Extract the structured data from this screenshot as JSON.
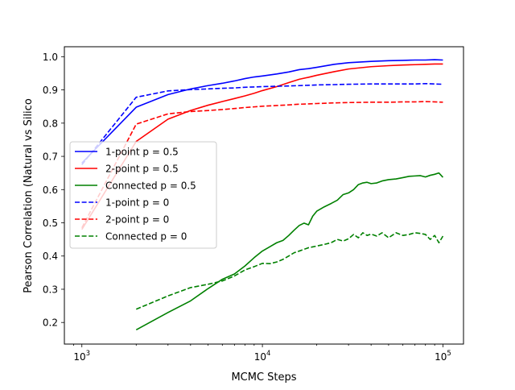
{
  "chart_data": {
    "type": "line",
    "title": "",
    "xlabel": "MCMC Steps",
    "ylabel": "Pearson Correlation (Natural vs Silico",
    "xscale": "log",
    "xlim": [
      800,
      130000
    ],
    "ylim": [
      0.135,
      1.03
    ],
    "grid": false,
    "legend_position": "center-left",
    "x_ticks": [
      {
        "value": 1000,
        "base": "10",
        "exp": "3"
      },
      {
        "value": 10000,
        "base": "10",
        "exp": "4"
      },
      {
        "value": 100000,
        "base": "10",
        "exp": "5"
      }
    ],
    "y_ticks": [
      {
        "value": 0.2,
        "label": "0.2"
      },
      {
        "value": 0.3,
        "label": "0.3"
      },
      {
        "value": 0.4,
        "label": "0.4"
      },
      {
        "value": 0.5,
        "label": "0.5"
      },
      {
        "value": 0.6,
        "label": "0.6"
      },
      {
        "value": 0.7,
        "label": "0.7"
      },
      {
        "value": 0.8,
        "label": "0.8"
      },
      {
        "value": 0.9,
        "label": "0.9"
      },
      {
        "value": 1.0,
        "label": "1.0"
      }
    ],
    "series": [
      {
        "name": "1-point p = 0.5",
        "color": "#0000ff",
        "dash": "solid",
        "x": [
          1000,
          2000,
          3000,
          4000,
          5000,
          6000,
          7000,
          8000,
          9000,
          10000,
          12000,
          14000,
          16000,
          18000,
          20000,
          25000,
          30000,
          40000,
          50000,
          60000,
          70000,
          80000,
          90000,
          100000
        ],
        "y": [
          0.68,
          0.848,
          0.886,
          0.903,
          0.913,
          0.92,
          0.927,
          0.934,
          0.939,
          0.942,
          0.948,
          0.954,
          0.961,
          0.964,
          0.968,
          0.977,
          0.982,
          0.986,
          0.988,
          0.989,
          0.99,
          0.99,
          0.991,
          0.99
        ]
      },
      {
        "name": "2-point p = 0.5",
        "color": "#ff0000",
        "dash": "solid",
        "x": [
          1000,
          2000,
          3000,
          4000,
          5000,
          6000,
          7000,
          8000,
          9000,
          10000,
          12000,
          14000,
          16000,
          18000,
          20000,
          25000,
          30000,
          40000,
          50000,
          60000,
          70000,
          80000,
          90000,
          100000
        ],
        "y": [
          0.48,
          0.745,
          0.812,
          0.838,
          0.854,
          0.865,
          0.874,
          0.882,
          0.89,
          0.898,
          0.91,
          0.922,
          0.932,
          0.938,
          0.944,
          0.955,
          0.963,
          0.97,
          0.973,
          0.975,
          0.976,
          0.977,
          0.978,
          0.978
        ]
      },
      {
        "name": "Connected p = 0.5",
        "color": "#008000",
        "dash": "solid",
        "x": [
          2000,
          3000,
          4000,
          5000,
          6000,
          7000,
          8000,
          9000,
          10000,
          11000,
          12000,
          13000,
          14000,
          15000,
          16000,
          17000,
          18000,
          19000,
          20000,
          22000,
          24000,
          26000,
          28000,
          30000,
          32000,
          34000,
          36000,
          38000,
          40000,
          43000,
          46000,
          50000,
          55000,
          60000,
          65000,
          70000,
          75000,
          80000,
          85000,
          90000,
          95000,
          100000
        ],
        "y": [
          0.178,
          0.23,
          0.265,
          0.302,
          0.33,
          0.346,
          0.37,
          0.395,
          0.415,
          0.428,
          0.44,
          0.447,
          0.462,
          0.478,
          0.492,
          0.499,
          0.494,
          0.52,
          0.535,
          0.548,
          0.558,
          0.568,
          0.585,
          0.59,
          0.6,
          0.615,
          0.62,
          0.622,
          0.618,
          0.62,
          0.626,
          0.63,
          0.632,
          0.636,
          0.64,
          0.641,
          0.642,
          0.638,
          0.643,
          0.646,
          0.65,
          0.637
        ]
      },
      {
        "name": "1-point p = 0",
        "color": "#0000ff",
        "dash": "dashed",
        "x": [
          1000,
          2000,
          3000,
          4000,
          5000,
          6000,
          7000,
          8000,
          9000,
          10000,
          12000,
          14000,
          16000,
          18000,
          20000,
          25000,
          30000,
          40000,
          50000,
          60000,
          70000,
          80000,
          90000,
          100000
        ],
        "y": [
          0.675,
          0.878,
          0.897,
          0.901,
          0.903,
          0.905,
          0.906,
          0.908,
          0.909,
          0.91,
          0.911,
          0.912,
          0.913,
          0.914,
          0.915,
          0.916,
          0.917,
          0.918,
          0.918,
          0.918,
          0.918,
          0.919,
          0.918,
          0.917
        ]
      },
      {
        "name": "2-point p = 0",
        "color": "#ff0000",
        "dash": "dashed",
        "x": [
          1000,
          2000,
          3000,
          4000,
          5000,
          6000,
          7000,
          8000,
          9000,
          10000,
          12000,
          14000,
          16000,
          18000,
          20000,
          25000,
          30000,
          40000,
          50000,
          60000,
          70000,
          80000,
          90000,
          100000
        ],
        "y": [
          0.485,
          0.797,
          0.828,
          0.835,
          0.838,
          0.841,
          0.844,
          0.847,
          0.849,
          0.851,
          0.853,
          0.855,
          0.857,
          0.858,
          0.859,
          0.861,
          0.862,
          0.863,
          0.863,
          0.864,
          0.864,
          0.865,
          0.864,
          0.863
        ]
      },
      {
        "name": "Connected p = 0",
        "color": "#008000",
        "dash": "dashed",
        "x": [
          2000,
          3000,
          4000,
          5000,
          6000,
          7000,
          8000,
          9000,
          10000,
          11000,
          12000,
          13000,
          14000,
          15000,
          16000,
          18000,
          20000,
          22000,
          24000,
          26000,
          28000,
          30000,
          32000,
          34000,
          36000,
          38000,
          40000,
          43000,
          46000,
          50000,
          55000,
          60000,
          65000,
          70000,
          75000,
          80000,
          85000,
          90000,
          95000,
          100000
        ],
        "y": [
          0.24,
          0.28,
          0.305,
          0.315,
          0.325,
          0.34,
          0.358,
          0.368,
          0.378,
          0.377,
          0.382,
          0.39,
          0.4,
          0.41,
          0.415,
          0.425,
          0.43,
          0.435,
          0.44,
          0.45,
          0.445,
          0.452,
          0.465,
          0.455,
          0.47,
          0.462,
          0.466,
          0.46,
          0.47,
          0.455,
          0.47,
          0.462,
          0.465,
          0.47,
          0.468,
          0.465,
          0.45,
          0.462,
          0.44,
          0.46
        ]
      }
    ]
  }
}
